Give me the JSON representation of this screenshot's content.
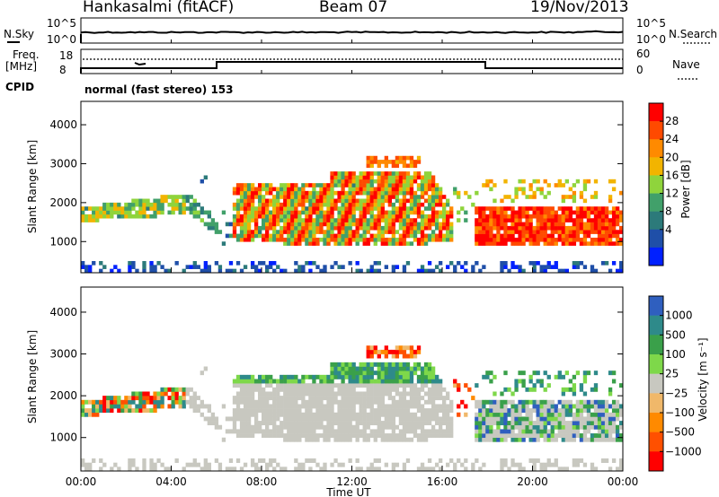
{
  "header": {
    "station": "Hankasalmi (fitACF)",
    "beam": "Beam 07",
    "date": "19/Nov/2013"
  },
  "top_panels": {
    "nsky_label": "N.Sky",
    "nsearch_label": "N.Search",
    "noise_ticks": [
      "10^5",
      "10^0"
    ],
    "freq_label_1": "Freq.",
    "freq_label_2": "[MHz]",
    "freq_ticks": [
      "18",
      "8"
    ],
    "nave_label": "Nave",
    "nave_ticks": [
      "60",
      "0"
    ],
    "cpid_label": "CPID",
    "mode_text": "normal (fast stereo) 153"
  },
  "chart_data": [
    {
      "type": "heatmap",
      "panel": "power",
      "ylabel": "Slant Range [km]",
      "xlabel": "",
      "ylim": [
        200,
        4600
      ],
      "y_ticks": [
        "1000",
        "2000",
        "3000",
        "4000"
      ],
      "x_ticks": [
        "00:00",
        "04:00",
        "08:00",
        "12:00",
        "16:00",
        "20:00",
        "00:00"
      ],
      "colorbar_label": "Power [dB]",
      "colorbar_ticks": [
        "28",
        "24",
        "20",
        "16",
        "12",
        "8",
        "4"
      ],
      "colors": [
        "#ff0000",
        "#ff4a00",
        "#ff8a00",
        "#f2b400",
        "#8fd43c",
        "#41a06a",
        "#2c7a7a",
        "#1f4fa8",
        "#0020ff"
      ]
    },
    {
      "type": "heatmap",
      "panel": "velocity",
      "ylabel": "Slant Range [km]",
      "xlabel": "Time UT",
      "ylim": [
        200,
        4600
      ],
      "y_ticks": [
        "1000",
        "2000",
        "3000",
        "4000"
      ],
      "x_ticks": [
        "00:00",
        "04:00",
        "08:00",
        "12:00",
        "16:00",
        "20:00",
        "00:00"
      ],
      "colorbar_label": "Velocity [m s⁻¹]",
      "colorbar_ticks": [
        "1000",
        "500",
        "100",
        "25",
        "−25",
        "−100",
        "−500",
        "−1000"
      ],
      "colors": [
        "#2f5fbf",
        "#2e8a8a",
        "#3aa04a",
        "#7ed84a",
        "#c8c8c0",
        "#f0b86a",
        "#ff8a00",
        "#ff5000",
        "#ff0000"
      ]
    }
  ]
}
